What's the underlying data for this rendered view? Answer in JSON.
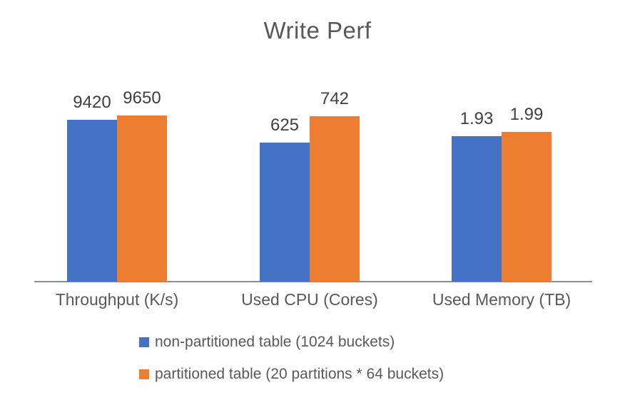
{
  "chart_data": {
    "type": "bar",
    "title": "Write Perf",
    "categories": [
      "Throughput (K/s)",
      "Used CPU (Cores)",
      "Used Memory (TB)"
    ],
    "series": [
      {
        "name": "non-partitioned table (1024 buckets)",
        "color": "#4472C4",
        "values": [
          9420,
          625,
          1.93
        ],
        "labels": [
          "9420",
          "625",
          "1.93"
        ]
      },
      {
        "name": "partitioned table (20 partitions * 64 buckets)",
        "color": "#ED7D31",
        "values": [
          9650,
          742,
          1.99
        ],
        "labels": [
          "9650",
          "742",
          "1.99"
        ]
      }
    ],
    "legend_position": "bottom",
    "grid": false,
    "value_axis_visible": false,
    "data_labels_visible": true,
    "background_color": "#FFFFFF",
    "title_color": "#595959",
    "text_color": "#595959",
    "data_label_color": "#404040",
    "axis_line_color": "#8F8F8F"
  }
}
